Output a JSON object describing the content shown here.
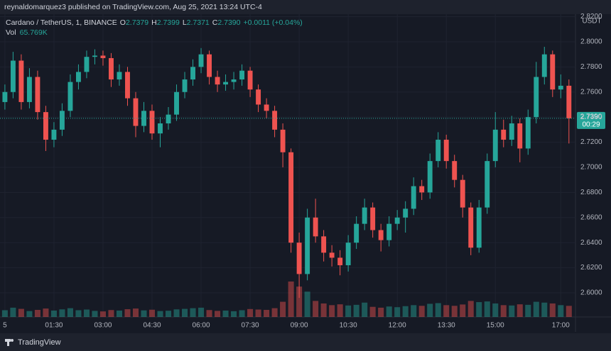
{
  "header": {
    "published": "reynaldomarquez3 published on TradingView.com, Aug 25, 2021 13:24 UTC-4"
  },
  "footer": {
    "brand": "TradingView"
  },
  "chart_data": {
    "type": "candlestick",
    "title": "Cardano / TetherUS, 1, BINANCE",
    "legend": [
      {
        "label": "O",
        "value": "2.7379"
      },
      {
        "label": "H",
        "value": "2.7399"
      },
      {
        "label": "L",
        "value": "2.7371"
      },
      {
        "label": "C",
        "value": "2.7390"
      }
    ],
    "change": "+0.0011 (+0.04%)",
    "volume_legend": {
      "label": "Vol",
      "value": "65.769K"
    },
    "currency": "USDT",
    "last_price": {
      "value": 2.739,
      "label": "2.7390"
    },
    "countdown": "00:29",
    "up_color": "#26a69a",
    "down_color": "#ef5350",
    "x": [
      0,
      15,
      30,
      45,
      60,
      75,
      90,
      105,
      120,
      135,
      150,
      165,
      180,
      195,
      210,
      225,
      240,
      255,
      270,
      285,
      300,
      315,
      330,
      345,
      360,
      375,
      390,
      405,
      420,
      435,
      450,
      465,
      480,
      495,
      510,
      525,
      540,
      555,
      570,
      585,
      600,
      615,
      630,
      645,
      660,
      675,
      690,
      705,
      720,
      735,
      750,
      765,
      780,
      795,
      810,
      825,
      840,
      855,
      870,
      885,
      900,
      915,
      930,
      945,
      960,
      975,
      990,
      1005,
      1020,
      1035
    ],
    "open": [
      2.752,
      2.76,
      2.785,
      2.752,
      2.772,
      2.744,
      2.722,
      2.73,
      2.745,
      2.768,
      2.776,
      2.788,
      2.789,
      2.787,
      2.77,
      2.776,
      2.755,
      2.733,
      2.745,
      2.727,
      2.735,
      2.742,
      2.76,
      2.77,
      2.78,
      2.79,
      2.772,
      2.766,
      2.768,
      2.77,
      2.777,
      2.762,
      2.75,
      2.745,
      2.73,
      2.712,
      2.64,
      2.615,
      2.66,
      2.645,
      2.632,
      2.628,
      2.622,
      2.64,
      2.655,
      2.668,
      2.65,
      2.642,
      2.655,
      2.66,
      2.667,
      2.685,
      2.68,
      2.705,
      2.722,
      2.705,
      2.69,
      2.668,
      2.636,
      2.668,
      2.705,
      2.73,
      2.722,
      2.735,
      2.715,
      2.74,
      2.772,
      2.79,
      2.762,
      2.765
    ],
    "high": [
      2.766,
      2.792,
      2.79,
      2.779,
      2.777,
      2.749,
      2.736,
      2.751,
      2.774,
      2.782,
      2.793,
      2.794,
      2.793,
      2.791,
      2.782,
      2.78,
      2.76,
      2.752,
      2.75,
      2.74,
      2.748,
      2.766,
      2.776,
      2.786,
      2.795,
      2.793,
      2.777,
      2.774,
      2.776,
      2.782,
      2.78,
      2.766,
      2.755,
      2.749,
      2.735,
      2.715,
      2.648,
      2.667,
      2.675,
      2.65,
      2.638,
      2.634,
      2.646,
      2.661,
      2.675,
      2.672,
      2.655,
      2.661,
      2.666,
      2.673,
      2.692,
      2.69,
      2.711,
      2.728,
      2.726,
      2.71,
      2.694,
      2.672,
      2.674,
      2.711,
      2.744,
      2.738,
      2.741,
      2.739,
      2.746,
      2.784,
      2.796,
      2.793,
      2.774,
      2.77
    ],
    "low": [
      2.746,
      2.755,
      2.746,
      2.747,
      2.738,
      2.713,
      2.716,
      2.725,
      2.74,
      2.762,
      2.771,
      2.782,
      2.781,
      2.764,
      2.765,
      2.749,
      2.724,
      2.728,
      2.722,
      2.716,
      2.73,
      2.737,
      2.755,
      2.765,
      2.775,
      2.766,
      2.76,
      2.761,
      2.762,
      2.765,
      2.756,
      2.744,
      2.739,
      2.724,
      2.7,
      2.632,
      2.596,
      2.61,
      2.64,
      2.625,
      2.621,
      2.614,
      2.617,
      2.635,
      2.65,
      2.644,
      2.633,
      2.637,
      2.65,
      2.648,
      2.662,
      2.674,
      2.675,
      2.7,
      2.699,
      2.684,
      2.66,
      2.63,
      2.632,
      2.663,
      2.7,
      2.716,
      2.717,
      2.704,
      2.71,
      2.735,
      2.766,
      2.756,
      2.755,
      2.719
    ],
    "close": [
      2.76,
      2.785,
      2.752,
      2.772,
      2.744,
      2.722,
      2.73,
      2.745,
      2.768,
      2.776,
      2.788,
      2.789,
      2.787,
      2.77,
      2.776,
      2.755,
      2.733,
      2.745,
      2.727,
      2.735,
      2.742,
      2.76,
      2.77,
      2.78,
      2.79,
      2.772,
      2.766,
      2.768,
      2.77,
      2.777,
      2.762,
      2.75,
      2.745,
      2.73,
      2.712,
      2.64,
      2.615,
      2.66,
      2.645,
      2.632,
      2.628,
      2.622,
      2.64,
      2.655,
      2.668,
      2.65,
      2.642,
      2.655,
      2.66,
      2.667,
      2.685,
      2.68,
      2.705,
      2.722,
      2.705,
      2.69,
      2.668,
      2.636,
      2.668,
      2.705,
      2.73,
      2.722,
      2.735,
      2.715,
      2.74,
      2.772,
      2.79,
      2.762,
      2.765,
      2.739
    ],
    "volume": [
      40,
      55,
      48,
      35,
      42,
      50,
      38,
      45,
      52,
      40,
      44,
      36,
      33,
      41,
      38,
      46,
      50,
      39,
      43,
      35,
      37,
      45,
      48,
      52,
      55,
      41,
      36,
      38,
      34,
      40,
      47,
      44,
      42,
      52,
      90,
      210,
      180,
      150,
      95,
      80,
      70,
      75,
      68,
      72,
      85,
      60,
      55,
      62,
      58,
      64,
      70,
      66,
      78,
      82,
      70,
      66,
      74,
      95,
      88,
      92,
      80,
      70,
      68,
      75,
      72,
      90,
      85,
      80,
      70,
      65.769
    ],
    "xlim": [
      -9,
      1047
    ],
    "ylim": [
      2.5808,
      2.822
    ],
    "xticks": [
      {
        "value": 0,
        "label": "5"
      },
      {
        "value": 90,
        "label": "01:30"
      },
      {
        "value": 180,
        "label": "03:00"
      },
      {
        "value": 270,
        "label": "04:30"
      },
      {
        "value": 360,
        "label": "06:00"
      },
      {
        "value": 450,
        "label": "07:30"
      },
      {
        "value": 540,
        "label": "09:00"
      },
      {
        "value": 630,
        "label": "10:30"
      },
      {
        "value": 720,
        "label": "12:00"
      },
      {
        "value": 810,
        "label": "13:30"
      },
      {
        "value": 900,
        "label": "15:00"
      },
      {
        "value": 1020,
        "label": "17:00"
      }
    ],
    "yticks": [
      {
        "value": 2.6,
        "label": "2.6000"
      },
      {
        "value": 2.62,
        "label": "2.6200"
      },
      {
        "value": 2.64,
        "label": "2.6400"
      },
      {
        "value": 2.66,
        "label": "2.6600"
      },
      {
        "value": 2.68,
        "label": "2.6800"
      },
      {
        "value": 2.7,
        "label": "2.7000"
      },
      {
        "value": 2.72,
        "label": "2.7200"
      },
      {
        "value": 2.74,
        "label": "2.7400"
      },
      {
        "value": 2.76,
        "label": "2.7600"
      },
      {
        "value": 2.78,
        "label": "2.7800"
      },
      {
        "value": 2.8,
        "label": "2.8000"
      },
      {
        "value": 2.82,
        "label": "2.8200"
      }
    ],
    "grid": true
  }
}
